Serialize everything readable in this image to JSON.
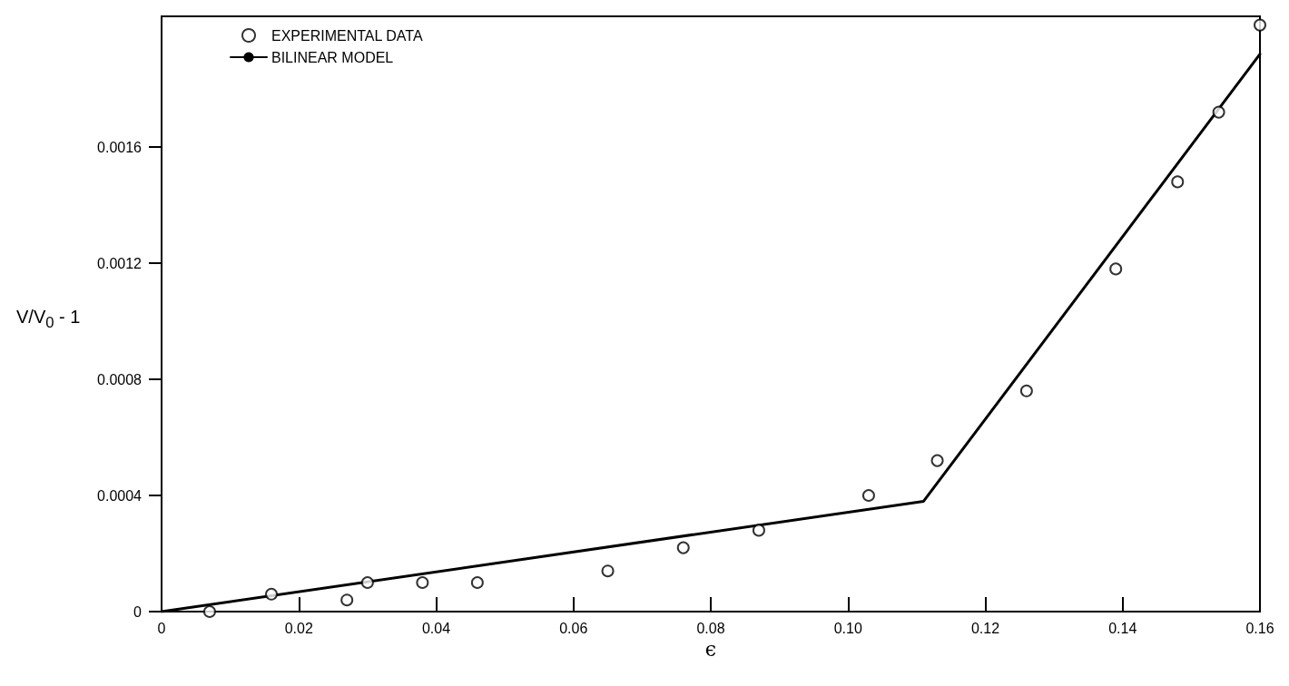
{
  "chart_data": {
    "type": "scatter",
    "xlabel": "ϵ",
    "ylabel": "V/V$_{0}$ - 1",
    "xlim": [
      0,
      0.16
    ],
    "ylim": [
      0,
      0.00205
    ],
    "xticks": [
      0,
      0.02,
      0.04,
      0.06,
      0.08,
      {
        "value": 0.1,
        "label": "0.10"
      },
      0.12,
      0.14,
      0.16
    ],
    "yticks": [
      0,
      0.0004,
      0.0008,
      0.0012,
      0.0016
    ],
    "grid": false,
    "legend": "top left",
    "series": [
      {
        "name": "EXPERIMENTAL DATA",
        "color": "#000000",
        "marker": "circle",
        "x": [
          0.007,
          0.016,
          0.027,
          0.03,
          0.038,
          0.046,
          0.065,
          0.076,
          0.087,
          0.103,
          0.113,
          0.126,
          0.139,
          0.148,
          0.154,
          0.16
        ],
        "values": [
          0,
          6e-05,
          4e-05,
          0.0001,
          0.0001,
          0.0001,
          0.00014,
          0.00022,
          0.00028,
          0.0004,
          0.00052,
          0.00076,
          0.00118,
          0.00148,
          0.00172,
          0.00202
        ]
      },
      {
        "name": "BILINEAR MODEL",
        "type": "line",
        "color": "#000000",
        "marker": "none",
        "line_style": "solid",
        "x": [
          0,
          0.111,
          0.16
        ],
        "values": [
          0,
          0.00038,
          0.00192
        ]
      }
    ]
  }
}
